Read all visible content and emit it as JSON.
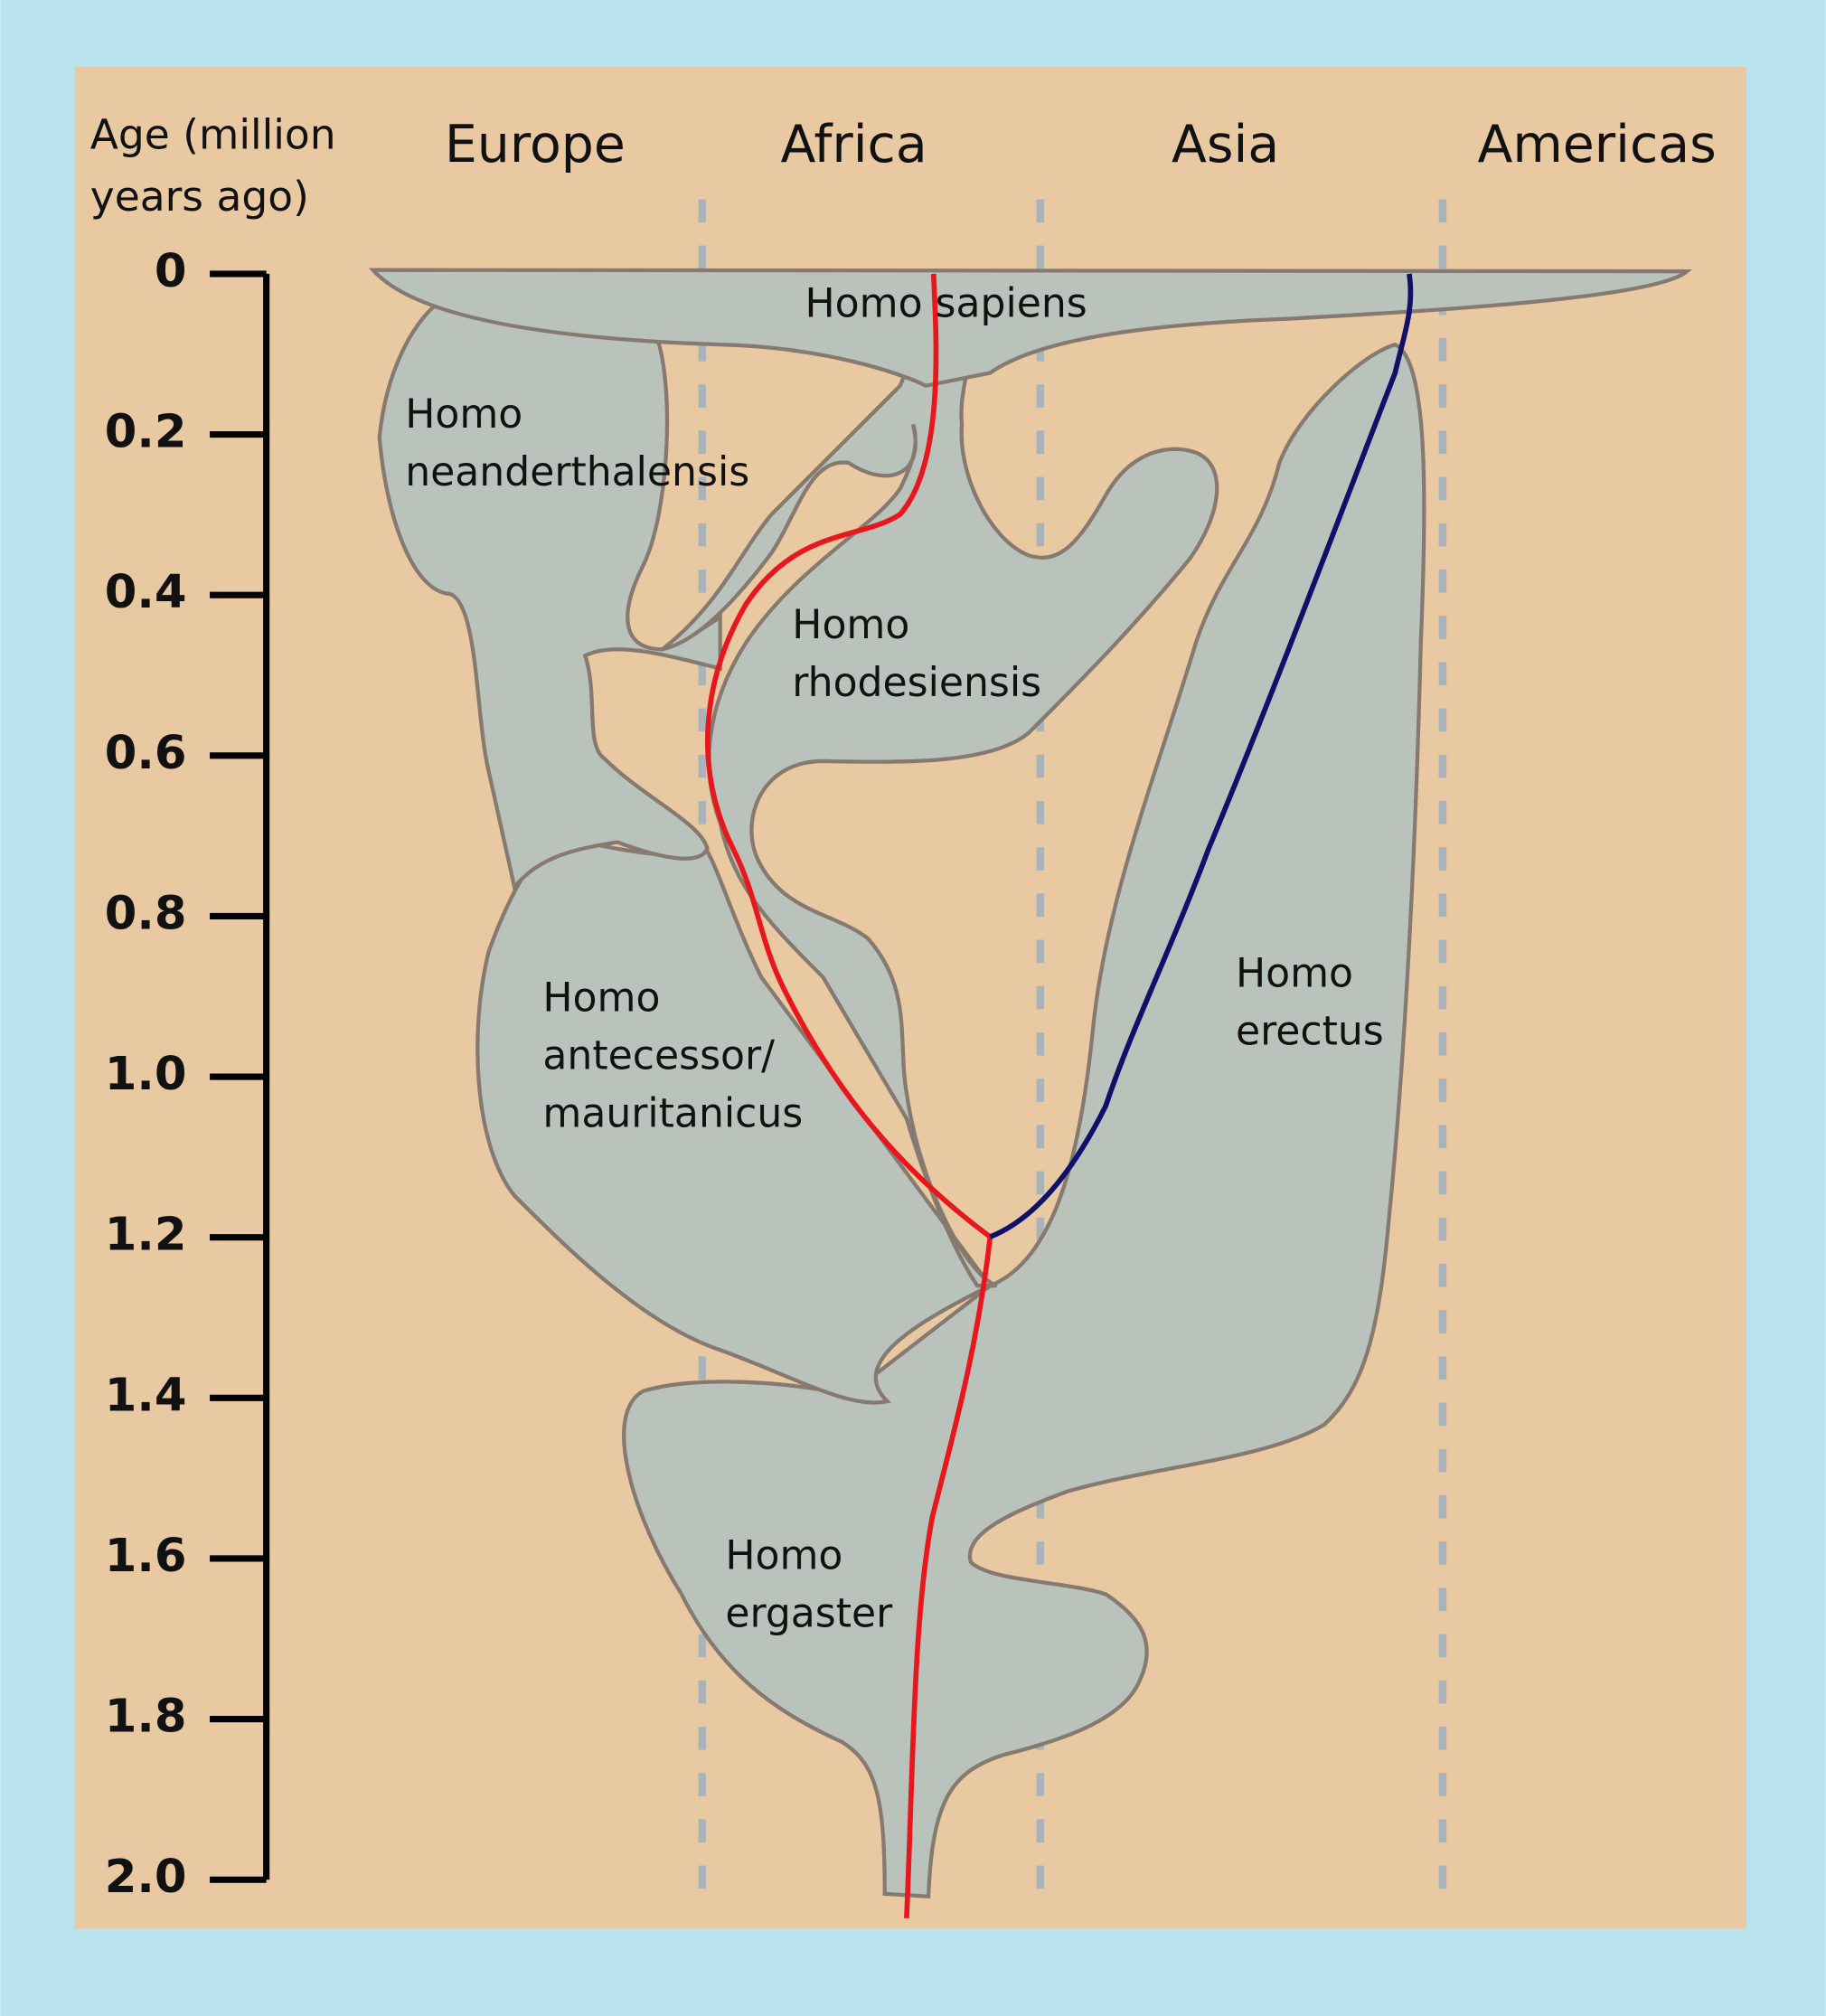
{
  "axis": {
    "title_lines": [
      "Age (million",
      "years ago)"
    ],
    "ticks": [
      "0",
      "0.2",
      "0.4",
      "0.6",
      "0.8",
      "1.0",
      "1.2",
      "1.4",
      "1.6",
      "1.8",
      "2.0"
    ]
  },
  "regions": [
    "Europe",
    "Africa",
    "Asia",
    "Americas"
  ],
  "species": [
    {
      "lines": [
        "Homo sapiens"
      ]
    },
    {
      "lines": [
        "Homo",
        "neanderthalensis"
      ]
    },
    {
      "lines": [
        "Homo",
        "rhodesiensis"
      ]
    },
    {
      "lines": [
        "Homo",
        "antecessor/",
        "mauritanicus"
      ]
    },
    {
      "lines": [
        "Homo",
        "erectus"
      ]
    },
    {
      "lines": [
        "Homo",
        "ergaster"
      ]
    }
  ]
}
